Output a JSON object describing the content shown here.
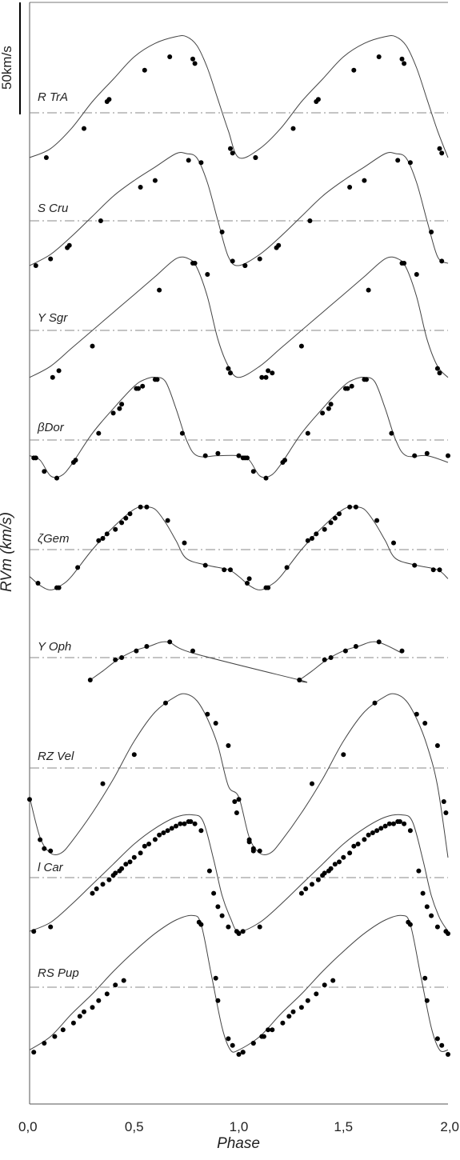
{
  "chart_data": {
    "type": "line",
    "xlabel": "Phase",
    "ylabel": "RVm (km/s)",
    "xlim": [
      0,
      2
    ],
    "x_ticks": [
      "0,0",
      "0,5",
      "1,0",
      "1,5",
      "2,0"
    ],
    "scale_bar_label": "50km/s",
    "scale_bar_value": 50,
    "grid": false,
    "series": [
      {
        "name": "R TrA",
        "curve": [
          [
            0.0,
            -20
          ],
          [
            0.1,
            -16
          ],
          [
            0.2,
            -7
          ],
          [
            0.3,
            5
          ],
          [
            0.4,
            15
          ],
          [
            0.5,
            25
          ],
          [
            0.6,
            31
          ],
          [
            0.7,
            34
          ],
          [
            0.75,
            34
          ],
          [
            0.8,
            30
          ],
          [
            0.85,
            20
          ],
          [
            0.9,
            6
          ],
          [
            0.95,
            -8
          ],
          [
            1.0,
            -18
          ],
          [
            1.05,
            -20
          ],
          [
            1.1,
            -20
          ]
        ],
        "points": [
          [
            0.08,
            -20
          ],
          [
            0.26,
            -7
          ],
          [
            0.37,
            5
          ],
          [
            0.38,
            6
          ],
          [
            0.55,
            19
          ],
          [
            0.67,
            25
          ],
          [
            0.78,
            24
          ],
          [
            0.79,
            22
          ],
          [
            0.96,
            -16
          ],
          [
            0.97,
            -18
          ],
          [
            1.08,
            -20
          ]
        ]
      },
      {
        "name": "S Cru",
        "curve": [
          [
            0.0,
            -20
          ],
          [
            0.1,
            -15
          ],
          [
            0.2,
            -7
          ],
          [
            0.3,
            2
          ],
          [
            0.4,
            11
          ],
          [
            0.5,
            18
          ],
          [
            0.6,
            24
          ],
          [
            0.7,
            30
          ],
          [
            0.75,
            30
          ],
          [
            0.8,
            28
          ],
          [
            0.85,
            17
          ],
          [
            0.9,
            0
          ],
          [
            0.95,
            -16
          ],
          [
            1.0,
            -20
          ],
          [
            1.05,
            -19
          ]
        ],
        "points": [
          [
            0.03,
            -20
          ],
          [
            0.1,
            -17
          ],
          [
            0.18,
            -12
          ],
          [
            0.19,
            -11
          ],
          [
            0.34,
            0
          ],
          [
            0.53,
            15
          ],
          [
            0.6,
            18
          ],
          [
            0.76,
            27
          ],
          [
            0.82,
            26
          ],
          [
            0.92,
            -5
          ],
          [
            0.97,
            -18
          ],
          [
            1.03,
            -20
          ]
        ]
      },
      {
        "name": "Y Sgr",
        "curve": [
          [
            0.0,
            -21
          ],
          [
            0.1,
            -16
          ],
          [
            0.2,
            -8
          ],
          [
            0.3,
            0
          ],
          [
            0.4,
            8
          ],
          [
            0.5,
            16
          ],
          [
            0.6,
            24
          ],
          [
            0.7,
            32
          ],
          [
            0.76,
            32
          ],
          [
            0.8,
            28
          ],
          [
            0.85,
            15
          ],
          [
            0.9,
            -4
          ],
          [
            0.95,
            -16
          ],
          [
            1.0,
            -21
          ],
          [
            1.05,
            -21
          ]
        ],
        "points": [
          [
            0.11,
            -21
          ],
          [
            0.14,
            -18
          ],
          [
            0.3,
            -7
          ],
          [
            0.62,
            18
          ],
          [
            0.78,
            30
          ],
          [
            0.79,
            30
          ],
          [
            0.85,
            25
          ],
          [
            0.95,
            -17
          ],
          [
            0.96,
            -19
          ],
          [
            1.13,
            -21
          ],
          [
            1.16,
            -19
          ]
        ]
      },
      {
        "name": "βDor",
        "curve": [
          [
            0.0,
            -7
          ],
          [
            0.05,
            -9
          ],
          [
            0.1,
            -16
          ],
          [
            0.15,
            -16
          ],
          [
            0.2,
            -11
          ],
          [
            0.3,
            3
          ],
          [
            0.4,
            14
          ],
          [
            0.5,
            24
          ],
          [
            0.55,
            27
          ],
          [
            0.6,
            28
          ],
          [
            0.65,
            26
          ],
          [
            0.7,
            14
          ],
          [
            0.75,
            0
          ],
          [
            0.8,
            -7
          ],
          [
            0.9,
            -7
          ],
          [
            1.0,
            -8
          ],
          [
            1.05,
            -10
          ]
        ],
        "points": [
          [
            0.02,
            -8
          ],
          [
            0.03,
            -8
          ],
          [
            0.07,
            -14
          ],
          [
            0.13,
            -17
          ],
          [
            0.21,
            -10
          ],
          [
            0.22,
            -9
          ],
          [
            0.33,
            3
          ],
          [
            0.4,
            12
          ],
          [
            0.43,
            14
          ],
          [
            0.44,
            16
          ],
          [
            0.51,
            23
          ],
          [
            0.52,
            23
          ],
          [
            0.54,
            24
          ],
          [
            0.6,
            27
          ],
          [
            0.61,
            27
          ],
          [
            0.73,
            3
          ],
          [
            0.84,
            -7
          ],
          [
            0.9,
            -6
          ],
          [
            1.0,
            -7
          ],
          [
            1.04,
            -8
          ]
        ]
      },
      {
        "name": "ζGem",
        "curve": [
          [
            0.0,
            -12
          ],
          [
            0.05,
            -16
          ],
          [
            0.1,
            -18
          ],
          [
            0.15,
            -16
          ],
          [
            0.2,
            -12
          ],
          [
            0.3,
            0
          ],
          [
            0.4,
            10
          ],
          [
            0.5,
            18
          ],
          [
            0.55,
            19
          ],
          [
            0.6,
            18
          ],
          [
            0.65,
            12
          ],
          [
            0.7,
            4
          ],
          [
            0.75,
            -4
          ],
          [
            0.85,
            -7
          ],
          [
            0.95,
            -9
          ],
          [
            1.0,
            -12
          ],
          [
            1.05,
            -13
          ]
        ],
        "points": [
          [
            0.04,
            -15
          ],
          [
            0.13,
            -17
          ],
          [
            0.14,
            -17
          ],
          [
            0.23,
            -8
          ],
          [
            0.33,
            4
          ],
          [
            0.35,
            5
          ],
          [
            0.37,
            7
          ],
          [
            0.41,
            9
          ],
          [
            0.44,
            12
          ],
          [
            0.46,
            14
          ],
          [
            0.48,
            16
          ],
          [
            0.53,
            19
          ],
          [
            0.56,
            19
          ],
          [
            0.66,
            13
          ],
          [
            0.74,
            3
          ],
          [
            0.84,
            -7
          ],
          [
            0.93,
            -9
          ],
          [
            0.96,
            -9
          ],
          [
            1.05,
            -13
          ]
        ]
      },
      {
        "name": "Y Oph",
        "curve": [
          [
            0.29,
            -10
          ],
          [
            0.35,
            -6
          ],
          [
            0.42,
            -1
          ],
          [
            0.5,
            3
          ],
          [
            0.57,
            5
          ],
          [
            0.66,
            7
          ],
          [
            0.78,
            2
          ],
          [
            1.29,
            -10
          ]
        ],
        "points": [
          [
            0.29,
            -10
          ],
          [
            0.41,
            -1
          ],
          [
            0.44,
            0
          ],
          [
            0.51,
            3
          ],
          [
            0.56,
            5
          ],
          [
            0.67,
            7
          ],
          [
            0.78,
            3
          ],
          [
            1.29,
            -10
          ]
        ]
      },
      {
        "name": "RZ Vel",
        "curve": [
          [
            0.0,
            -13
          ],
          [
            0.05,
            -31
          ],
          [
            0.1,
            -38
          ],
          [
            0.15,
            -38
          ],
          [
            0.2,
            -33
          ],
          [
            0.3,
            -20
          ],
          [
            0.4,
            -5
          ],
          [
            0.5,
            12
          ],
          [
            0.6,
            25
          ],
          [
            0.7,
            32
          ],
          [
            0.75,
            33
          ],
          [
            0.8,
            30
          ],
          [
            0.85,
            22
          ],
          [
            0.9,
            10
          ],
          [
            0.95,
            -8
          ],
          [
            1.0,
            -28
          ],
          [
            1.05,
            -38
          ],
          [
            1.1,
            -40
          ]
        ],
        "points": [
          [
            0.0,
            -14
          ],
          [
            0.05,
            -32
          ],
          [
            0.07,
            -36
          ],
          [
            0.1,
            -37
          ],
          [
            0.35,
            -7
          ],
          [
            0.5,
            6
          ],
          [
            0.65,
            29
          ],
          [
            0.85,
            24
          ],
          [
            0.89,
            20
          ],
          [
            0.95,
            10
          ],
          [
            0.98,
            -15
          ],
          [
            0.99,
            -20
          ],
          [
            1.05,
            -33
          ],
          [
            1.07,
            -37
          ]
        ]
      },
      {
        "name": "l Car",
        "curve": [
          [
            0.0,
            -24
          ],
          [
            0.1,
            -20
          ],
          [
            0.2,
            -12
          ],
          [
            0.3,
            -3
          ],
          [
            0.4,
            6
          ],
          [
            0.5,
            15
          ],
          [
            0.6,
            22
          ],
          [
            0.7,
            27
          ],
          [
            0.78,
            28
          ],
          [
            0.83,
            25
          ],
          [
            0.88,
            8
          ],
          [
            0.92,
            -8
          ],
          [
            0.96,
            -18
          ],
          [
            1.0,
            -24
          ],
          [
            1.05,
            -24
          ]
        ],
        "points": [
          [
            0.02,
            -24
          ],
          [
            0.1,
            -22
          ],
          [
            0.3,
            -7
          ],
          [
            0.32,
            -5
          ],
          [
            0.35,
            -3
          ],
          [
            0.38,
            -1
          ],
          [
            0.4,
            1
          ],
          [
            0.41,
            2
          ],
          [
            0.43,
            3
          ],
          [
            0.44,
            4
          ],
          [
            0.46,
            6
          ],
          [
            0.48,
            7
          ],
          [
            0.5,
            9
          ],
          [
            0.53,
            11
          ],
          [
            0.55,
            14
          ],
          [
            0.57,
            15
          ],
          [
            0.6,
            17
          ],
          [
            0.62,
            19
          ],
          [
            0.64,
            20
          ],
          [
            0.66,
            21
          ],
          [
            0.68,
            22
          ],
          [
            0.7,
            23
          ],
          [
            0.72,
            24
          ],
          [
            0.74,
            24
          ],
          [
            0.76,
            25
          ],
          [
            0.77,
            25
          ],
          [
            0.79,
            24
          ],
          [
            0.82,
            21
          ],
          [
            0.86,
            3
          ],
          [
            0.88,
            -7
          ],
          [
            0.9,
            -13
          ],
          [
            0.92,
            -17
          ],
          [
            0.95,
            -22
          ],
          [
            0.99,
            -24
          ],
          [
            1.0,
            -25
          ]
        ]
      },
      {
        "name": "RS Pup",
        "curve": [
          [
            0.0,
            -28
          ],
          [
            0.1,
            -22
          ],
          [
            0.2,
            -12
          ],
          [
            0.3,
            -3
          ],
          [
            0.4,
            7
          ],
          [
            0.5,
            16
          ],
          [
            0.6,
            24
          ],
          [
            0.7,
            30
          ],
          [
            0.78,
            32
          ],
          [
            0.82,
            28
          ],
          [
            0.87,
            5
          ],
          [
            0.92,
            -18
          ],
          [
            0.96,
            -28
          ],
          [
            1.0,
            -30
          ],
          [
            1.05,
            -28
          ]
        ],
        "points": [
          [
            0.02,
            -29
          ],
          [
            0.07,
            -25
          ],
          [
            0.12,
            -22
          ],
          [
            0.16,
            -19
          ],
          [
            0.21,
            -16
          ],
          [
            0.24,
            -13
          ],
          [
            0.26,
            -11
          ],
          [
            0.3,
            -9
          ],
          [
            0.33,
            -6
          ],
          [
            0.37,
            -3
          ],
          [
            0.41,
            1
          ],
          [
            0.45,
            3
          ],
          [
            0.81,
            29
          ],
          [
            0.82,
            28
          ],
          [
            0.89,
            4
          ],
          [
            0.9,
            -6
          ],
          [
            0.95,
            -23
          ],
          [
            0.97,
            -26
          ],
          [
            1.0,
            -30
          ],
          [
            1.02,
            -29
          ],
          [
            1.07,
            -25
          ],
          [
            1.11,
            -22
          ],
          [
            1.14,
            -19
          ]
        ]
      }
    ]
  }
}
